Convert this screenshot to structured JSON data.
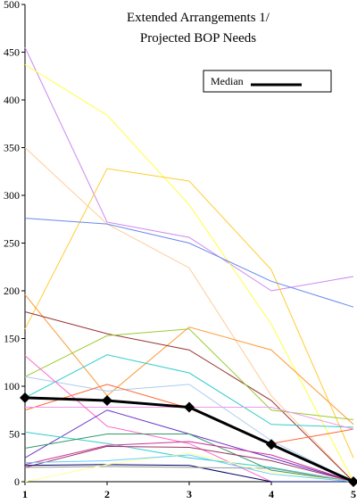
{
  "chart_data": {
    "type": "line",
    "title_lines": [
      "Extended Arrangements  1/",
      "Projected BOP Needs"
    ],
    "xlabel": "",
    "ylabel": "",
    "x": [
      1,
      2,
      3,
      4,
      5
    ],
    "xlim": [
      1,
      5
    ],
    "ylim": [
      0,
      500
    ],
    "y_ticks": [
      0,
      50,
      100,
      150,
      200,
      250,
      300,
      350,
      400,
      450,
      500
    ],
    "grid": false,
    "legend": {
      "position": "top-right",
      "label": "Median"
    },
    "series": [
      {
        "color": "#cc88ee",
        "values": [
          455,
          272,
          256,
          200,
          215
        ]
      },
      {
        "color": "#ffff44",
        "values": [
          437,
          384,
          290,
          165,
          0
        ]
      },
      {
        "color": "#ffcc33",
        "values": [
          160,
          328,
          315,
          222,
          25
        ]
      },
      {
        "color": "#ffcc99",
        "values": [
          350,
          270,
          224,
          90,
          0
        ]
      },
      {
        "color": "#6688ee",
        "values": [
          276,
          270,
          250,
          210,
          183
        ]
      },
      {
        "color": "#ff9933",
        "values": [
          196,
          90,
          162,
          138,
          60
        ]
      },
      {
        "color": "#993333",
        "values": [
          178,
          155,
          138,
          85,
          0
        ]
      },
      {
        "color": "#99cc33",
        "values": [
          110,
          153,
          160,
          75,
          65
        ]
      },
      {
        "color": "#33cccc",
        "values": [
          88,
          133,
          114,
          60,
          57
        ]
      },
      {
        "color": "#aaccee",
        "values": [
          110,
          95,
          102,
          43,
          0
        ]
      },
      {
        "color": "#ff6633",
        "values": [
          75,
          102,
          77,
          40,
          55
        ]
      },
      {
        "color": "#ee99ee",
        "values": [
          78,
          78,
          78,
          78,
          55
        ]
      },
      {
        "color": "#ff66cc",
        "values": [
          132,
          58,
          40,
          0,
          0
        ]
      },
      {
        "color": "#6633cc",
        "values": [
          25,
          75,
          50,
          25,
          0
        ]
      },
      {
        "color": "#33cccc",
        "values": [
          52,
          40,
          25,
          15,
          0
        ]
      },
      {
        "color": "#339966",
        "values": [
          35,
          50,
          50,
          12,
          0
        ]
      },
      {
        "color": "#993366",
        "values": [
          15,
          37,
          36,
          22,
          0
        ]
      },
      {
        "color": "#cc3399",
        "values": [
          18,
          38,
          42,
          28,
          0
        ]
      },
      {
        "color": "#000066",
        "values": [
          17,
          18,
          17,
          0,
          0
        ]
      },
      {
        "color": "#999999",
        "values": [
          15,
          16,
          15,
          14,
          0
        ]
      },
      {
        "color": "#ffff99",
        "values": [
          0,
          18,
          30,
          10,
          0
        ]
      },
      {
        "color": "#66ccff",
        "values": [
          20,
          22,
          28,
          8,
          0
        ]
      }
    ],
    "median": {
      "name": "Median",
      "color": "#000000",
      "values": [
        88,
        85,
        78,
        39,
        0
      ]
    }
  }
}
